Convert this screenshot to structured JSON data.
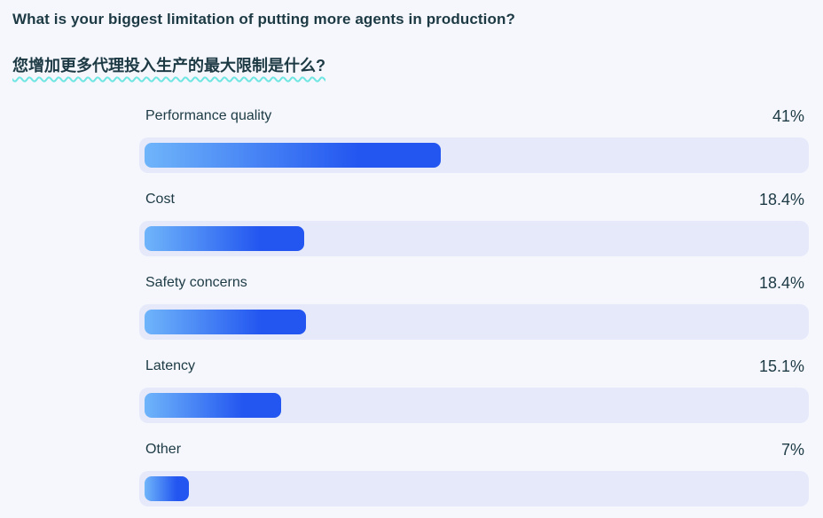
{
  "page": {
    "background": "#f5f7fd",
    "text_color": "#1d3a44",
    "underline_color": "#6fe6e2"
  },
  "header": {
    "title_en": "What is your biggest limitation of putting more agents in production?",
    "title_zh": "您增加更多代理投入生产的最大限制是什么?"
  },
  "chart_data": {
    "type": "bar",
    "orientation": "horizontal",
    "title": "What is your biggest limitation of putting more agents in production?",
    "categories": [
      "Performance quality",
      "Cost",
      "Safety concerns",
      "Latency",
      "Other"
    ],
    "values": [
      41,
      18.4,
      18.4,
      15.1,
      7
    ],
    "value_labels": [
      "41%",
      "18.4%",
      "18.4%",
      "15.1%",
      "7%"
    ],
    "bar_display_pct": [
      45.0,
      24.2,
      24.5,
      20.7,
      6.7
    ],
    "xlim": [
      0,
      100
    ],
    "grid": false,
    "legend": false,
    "track_color": "#e5e9fa",
    "bar_gradient_start": "#6fb5fa",
    "bar_gradient_end": "#2356f0",
    "value_label_position": "top-right",
    "category_label_position": "top-left"
  }
}
